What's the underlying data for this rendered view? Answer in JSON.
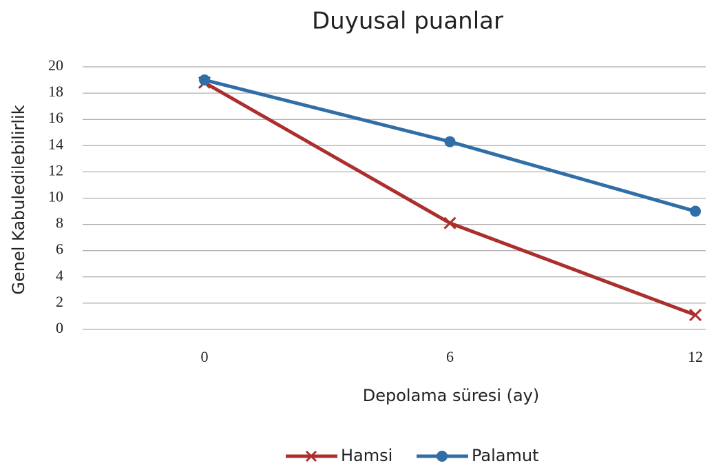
{
  "chart_data": {
    "type": "line",
    "title": "Duyusal puanlar",
    "x_label": "Depolama süresi (ay)",
    "y_label": "Genel Kabuledilebilirlik",
    "categories": [
      "0",
      "6",
      "12"
    ],
    "series": [
      {
        "name": "Hamsi",
        "color": "#ab2f2c",
        "marker": "x",
        "values": [
          18.8,
          8.1,
          1.1
        ]
      },
      {
        "name": "Palamut",
        "color": "#2f6ea6",
        "marker": "circle",
        "values": [
          19,
          14.3,
          9
        ]
      }
    ],
    "ylim": [
      0,
      20
    ],
    "yticks": [
      0,
      2,
      4,
      6,
      8,
      10,
      12,
      14,
      16,
      18,
      20
    ],
    "grid": true,
    "legend": "bottom"
  }
}
